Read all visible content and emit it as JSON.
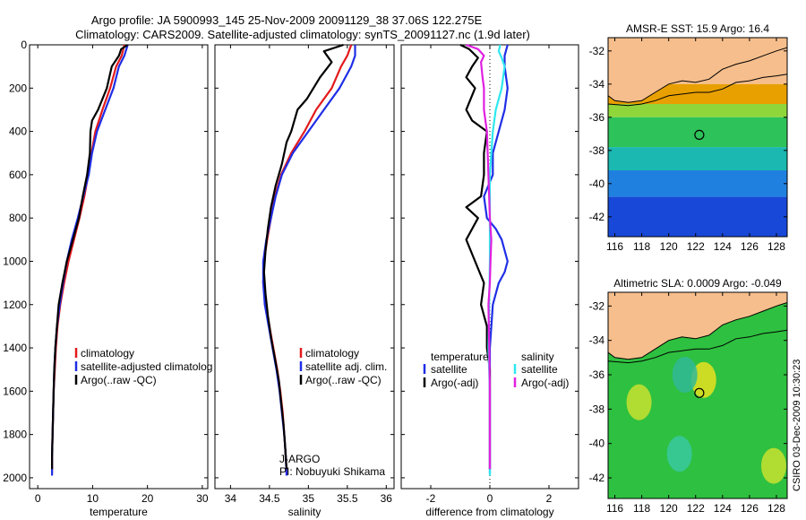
{
  "header": {
    "line1": "Argo profile: JA 5900993_145 25-Nov-2009 20091129_38 37.06S 122.275E",
    "line2": "Climatology: CARS2009. Satellite-adjusted climatology: synTS_20091127.nc (1.9d later)"
  },
  "credit": "CSIRO 03-Dec-2009 10:30:23",
  "colors": {
    "climatology": "#e31a1c",
    "satellite": "#1f2ee6",
    "argo": "#000000",
    "sal_satellite": "#2ee8ee",
    "sal_argo": "#e020e0",
    "land": "#f6be8c",
    "coast": "#000000"
  },
  "chart_data": [
    {
      "type": "line",
      "xlabel": "temperature",
      "ylim": [
        2050,
        0
      ],
      "xlim": [
        -1.5,
        31
      ],
      "xticks": [
        "0",
        "10",
        "20",
        "30"
      ],
      "yticks": [
        "0",
        "200",
        "400",
        "600",
        "800",
        "1000",
        "1200",
        "1400",
        "1600",
        "1800",
        "2000"
      ],
      "legend": [
        "climatology",
        "satellite-adjusted climatolog",
        "Argo(..raw -QC)"
      ],
      "series": [
        {
          "name": "climatology",
          "color": "#e31a1c",
          "points": [
            [
              15.8,
              0
            ],
            [
              15.3,
              50
            ],
            [
              14.3,
              100
            ],
            [
              13.2,
              200
            ],
            [
              11.8,
              300
            ],
            [
              10.5,
              400
            ],
            [
              9.8,
              500
            ],
            [
              9.2,
              600
            ],
            [
              8.5,
              700
            ],
            [
              7.6,
              800
            ],
            [
              6.6,
              900
            ],
            [
              5.6,
              1000
            ],
            [
              4.8,
              1100
            ],
            [
              4.1,
              1200
            ],
            [
              3.6,
              1300
            ],
            [
              3.3,
              1400
            ],
            [
              3.1,
              1500
            ],
            [
              2.9,
              1600
            ],
            [
              2.8,
              1700
            ],
            [
              2.7,
              1800
            ],
            [
              2.6,
              1900
            ],
            [
              2.6,
              1980
            ]
          ]
        },
        {
          "name": "satellite-adjusted climatolog",
          "color": "#1f2ee6",
          "points": [
            [
              16.4,
              0
            ],
            [
              15.8,
              50
            ],
            [
              14.8,
              100
            ],
            [
              13.8,
              200
            ],
            [
              12.3,
              300
            ],
            [
              10.8,
              400
            ],
            [
              9.9,
              500
            ],
            [
              9.3,
              600
            ],
            [
              8.3,
              700
            ],
            [
              7.3,
              800
            ],
            [
              6.2,
              900
            ],
            [
              5.3,
              1000
            ],
            [
              4.6,
              1100
            ],
            [
              4.0,
              1200
            ],
            [
              3.5,
              1300
            ],
            [
              3.2,
              1400
            ],
            [
              3.0,
              1500
            ],
            [
              2.9,
              1600
            ],
            [
              2.8,
              1700
            ],
            [
              2.7,
              1800
            ],
            [
              2.6,
              1900
            ],
            [
              2.6,
              1990
            ]
          ]
        },
        {
          "name": "Argo(..raw -QC)",
          "color": "#000000",
          "points": [
            [
              16.4,
              0
            ],
            [
              15.2,
              20
            ],
            [
              14.8,
              50
            ],
            [
              13.5,
              100
            ],
            [
              12.6,
              200
            ],
            [
              11.0,
              300
            ],
            [
              9.9,
              350
            ],
            [
              9.6,
              400
            ],
            [
              9.5,
              500
            ],
            [
              9.0,
              600
            ],
            [
              8.2,
              700
            ],
            [
              7.5,
              800
            ],
            [
              6.4,
              900
            ],
            [
              5.3,
              1000
            ],
            [
              4.5,
              1100
            ],
            [
              3.8,
              1200
            ],
            [
              3.5,
              1300
            ],
            [
              3.2,
              1400
            ],
            [
              3.0,
              1500
            ],
            [
              2.9,
              1600
            ],
            [
              2.8,
              1700
            ],
            [
              2.7,
              1800
            ],
            [
              2.6,
              1900
            ],
            [
              2.6,
              1960
            ]
          ]
        }
      ]
    },
    {
      "type": "line",
      "xlabel": "salinity",
      "ylim": [
        2050,
        0
      ],
      "xlim": [
        33.8,
        36.1
      ],
      "xticks": [
        "34",
        "34.5",
        "35",
        "35.5",
        "36"
      ],
      "legend": [
        "climatology",
        "satellite adj. clim.",
        "Argo(..raw -QC)"
      ],
      "annotation": [
        "J-ARGO",
        "PI: Nobuyuki Shikama"
      ],
      "series": [
        {
          "name": "climatology",
          "color": "#e31a1c",
          "points": [
            [
              35.55,
              0
            ],
            [
              35.5,
              50
            ],
            [
              35.42,
              100
            ],
            [
              35.3,
              200
            ],
            [
              35.1,
              300
            ],
            [
              34.95,
              400
            ],
            [
              34.78,
              500
            ],
            [
              34.65,
              600
            ],
            [
              34.57,
              700
            ],
            [
              34.52,
              800
            ],
            [
              34.47,
              900
            ],
            [
              34.43,
              1000
            ],
            [
              34.42,
              1100
            ],
            [
              34.45,
              1200
            ],
            [
              34.5,
              1300
            ],
            [
              34.55,
              1400
            ],
            [
              34.6,
              1500
            ],
            [
              34.64,
              1600
            ],
            [
              34.67,
              1700
            ],
            [
              34.69,
              1800
            ],
            [
              34.71,
              1900
            ],
            [
              34.72,
              1980
            ]
          ]
        },
        {
          "name": "satellite adj. clim.",
          "color": "#1f2ee6",
          "points": [
            [
              35.6,
              0
            ],
            [
              35.6,
              50
            ],
            [
              35.55,
              100
            ],
            [
              35.4,
              200
            ],
            [
              35.2,
              300
            ],
            [
              35.0,
              400
            ],
            [
              34.8,
              500
            ],
            [
              34.66,
              600
            ],
            [
              34.58,
              700
            ],
            [
              34.52,
              800
            ],
            [
              34.46,
              900
            ],
            [
              34.42,
              1000
            ],
            [
              34.42,
              1100
            ],
            [
              34.44,
              1200
            ],
            [
              34.49,
              1300
            ],
            [
              34.54,
              1400
            ],
            [
              34.59,
              1500
            ],
            [
              34.63,
              1600
            ],
            [
              34.66,
              1700
            ],
            [
              34.69,
              1800
            ],
            [
              34.71,
              1900
            ],
            [
              34.72,
              1990
            ]
          ]
        },
        {
          "name": "Argo(..raw -QC)",
          "color": "#000000",
          "points": [
            [
              35.45,
              0
            ],
            [
              35.2,
              30
            ],
            [
              35.3,
              80
            ],
            [
              35.15,
              150
            ],
            [
              34.98,
              250
            ],
            [
              34.86,
              300
            ],
            [
              34.78,
              400
            ],
            [
              34.72,
              450
            ],
            [
              34.66,
              550
            ],
            [
              34.58,
              650
            ],
            [
              34.52,
              750
            ],
            [
              34.48,
              850
            ],
            [
              34.45,
              950
            ],
            [
              34.43,
              1050
            ],
            [
              34.45,
              1150
            ],
            [
              34.48,
              1250
            ],
            [
              34.52,
              1350
            ],
            [
              34.57,
              1450
            ],
            [
              34.62,
              1550
            ],
            [
              34.65,
              1650
            ],
            [
              34.68,
              1750
            ],
            [
              34.7,
              1850
            ],
            [
              34.72,
              1960
            ]
          ]
        }
      ]
    },
    {
      "type": "line",
      "xlabel": "difference from climatology",
      "ylim": [
        2050,
        0
      ],
      "xlim": [
        -3,
        3
      ],
      "xticks": [
        "-2",
        "0",
        "2"
      ],
      "legend_temperature": {
        "heading": "temperature",
        "items": [
          "satellite",
          "Argo(-adj)"
        ]
      },
      "legend_salinity": {
        "heading": "salinity",
        "items": [
          "satellite",
          "Argo(-adj)"
        ]
      },
      "series": [
        {
          "name": "satellite",
          "group": "temperature",
          "color": "#1f2ee6",
          "points": [
            [
              0.6,
              0
            ],
            [
              0.5,
              50
            ],
            [
              0.5,
              100
            ],
            [
              0.6,
              200
            ],
            [
              0.5,
              300
            ],
            [
              0.3,
              400
            ],
            [
              0.1,
              500
            ],
            [
              0.1,
              600
            ],
            [
              -0.2,
              700
            ],
            [
              -0.1,
              800
            ],
            [
              0.2,
              850
            ],
            [
              0.4,
              900
            ],
            [
              0.6,
              1000
            ],
            [
              0.5,
              1050
            ],
            [
              0.3,
              1100
            ],
            [
              0.1,
              1200
            ],
            [
              0.0,
              1400
            ],
            [
              0.0,
              1980
            ]
          ]
        },
        {
          "name": "Argo(-adj)",
          "group": "temperature",
          "color": "#000000",
          "points": [
            [
              -1.0,
              0
            ],
            [
              -0.7,
              20
            ],
            [
              -0.4,
              60
            ],
            [
              -0.6,
              100
            ],
            [
              -0.8,
              150
            ],
            [
              -0.5,
              200
            ],
            [
              -0.8,
              300
            ],
            [
              -0.6,
              350
            ],
            [
              -0.1,
              400
            ],
            [
              -0.2,
              500
            ],
            [
              -0.2,
              600
            ],
            [
              -0.3,
              700
            ],
            [
              -0.8,
              750
            ],
            [
              -0.4,
              800
            ],
            [
              -0.8,
              900
            ],
            [
              -0.5,
              1000
            ],
            [
              -0.2,
              1100
            ],
            [
              -0.3,
              1200
            ],
            [
              -0.1,
              1300
            ],
            [
              -0.1,
              1400
            ],
            [
              0.0,
              1500
            ],
            [
              0.0,
              1960
            ]
          ]
        },
        {
          "name": "satellite",
          "group": "salinity",
          "color": "#2ee8ee",
          "points": [
            [
              0.35,
              0
            ],
            [
              0.3,
              30
            ],
            [
              0.4,
              60
            ],
            [
              0.5,
              100
            ],
            [
              0.4,
              200
            ],
            [
              0.2,
              300
            ],
            [
              0.1,
              400
            ],
            [
              0.0,
              600
            ],
            [
              0.0,
              1000
            ],
            [
              -0.05,
              1400
            ],
            [
              0.0,
              1600
            ],
            [
              0.0,
              1990
            ]
          ]
        },
        {
          "name": "Argo(-adj)",
          "group": "salinity",
          "color": "#e020e0",
          "points": [
            [
              -0.8,
              0
            ],
            [
              -0.4,
              20
            ],
            [
              -0.2,
              50
            ],
            [
              -0.3,
              80
            ],
            [
              -0.25,
              150
            ],
            [
              -0.2,
              200
            ],
            [
              -0.2,
              300
            ],
            [
              -0.1,
              400
            ],
            [
              -0.05,
              600
            ],
            [
              0.0,
              800
            ],
            [
              0.05,
              900
            ],
            [
              0.02,
              1000
            ],
            [
              0.0,
              1100
            ],
            [
              -0.05,
              1200
            ],
            [
              -0.02,
              1400
            ],
            [
              0.0,
              1600
            ],
            [
              0.0,
              1960
            ]
          ]
        }
      ]
    },
    {
      "type": "heatmap",
      "title": "AMSR-E SST: 15.9 Argo: 16.4",
      "xticks": [
        "116",
        "118",
        "120",
        "122",
        "124",
        "126",
        "128"
      ],
      "yticks": [
        "-32",
        "-34",
        "-36",
        "-38",
        "-40",
        "-42"
      ],
      "xlim": [
        115.5,
        128.8
      ],
      "ylim": [
        -43.2,
        -31.2
      ],
      "argo_position": [
        122.275,
        -37.06
      ],
      "color_bands": [
        {
          "lat_top": -31.2,
          "lat_bottom": -34.0,
          "color": "#f6be8c"
        },
        {
          "lat_top": -34.0,
          "lat_bottom": -35.2,
          "color": "#e8a000"
        },
        {
          "lat_top": -35.2,
          "lat_bottom": -36.0,
          "color": "#8fd63a"
        },
        {
          "lat_top": -36.0,
          "lat_bottom": -37.8,
          "color": "#2ec25a"
        },
        {
          "lat_top": -37.8,
          "lat_bottom": -39.2,
          "color": "#1ab8b0"
        },
        {
          "lat_top": -39.2,
          "lat_bottom": -40.8,
          "color": "#2080e0"
        },
        {
          "lat_top": -40.8,
          "lat_bottom": -43.2,
          "color": "#1848d8"
        }
      ]
    },
    {
      "type": "heatmap",
      "title": "Altimetric SLA: 0.0009 Argo: -0.049",
      "xticks": [
        "116",
        "118",
        "120",
        "122",
        "124",
        "126",
        "128"
      ],
      "yticks": [
        "-32",
        "-34",
        "-36",
        "-38",
        "-40",
        "-42"
      ],
      "xlim": [
        115.5,
        128.8
      ],
      "ylim": [
        -43.2,
        -31.2
      ],
      "argo_position": [
        122.275,
        -37.06
      ],
      "base_color": "#2ec040",
      "features": [
        {
          "lon": 122.6,
          "lat": -36.3,
          "color": "#e8e020"
        },
        {
          "lon": 117.8,
          "lat": -37.6,
          "color": "#c8e030"
        },
        {
          "lon": 127.8,
          "lat": -41.3,
          "color": "#c8e030"
        },
        {
          "lon": 121.2,
          "lat": -36.0,
          "color": "#30b898"
        },
        {
          "lon": 120.8,
          "lat": -40.6,
          "color": "#38c8a0"
        }
      ]
    }
  ]
}
